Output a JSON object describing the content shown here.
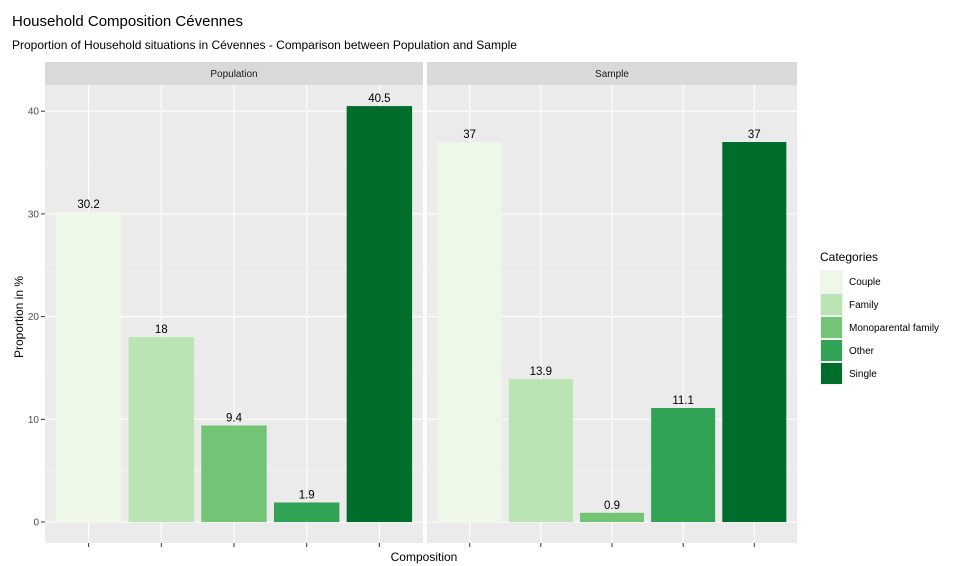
{
  "chart_data": {
    "type": "bar",
    "title": "Household Composition Cévennes",
    "subtitle": "Proportion of Household situations in Cévennes - Comparison between Population and Sample",
    "xlabel": "Composition",
    "ylabel": "Proportion in %",
    "ylim": [
      0,
      42.5
    ],
    "yticks": [
      0,
      10,
      20,
      30,
      40
    ],
    "grid": true,
    "categories": [
      "Couple",
      "Family",
      "Monoparental family",
      "Other",
      "Single"
    ],
    "colors": [
      "#EDF8E9",
      "#BAE4B3",
      "#74C476",
      "#31A354",
      "#006D2C"
    ],
    "facets": [
      {
        "name": "Population",
        "values": [
          30.2,
          18,
          9.4,
          1.9,
          40.5
        ],
        "labels": [
          "30.2",
          "18",
          "9.4",
          "1.9",
          "40.5"
        ]
      },
      {
        "name": "Sample",
        "values": [
          37,
          13.9,
          0.9,
          11.1,
          37
        ],
        "labels": [
          "37",
          "13.9",
          "0.9",
          "11.1",
          "37"
        ]
      }
    ],
    "legend": {
      "title": "Categories",
      "position": "right"
    }
  }
}
